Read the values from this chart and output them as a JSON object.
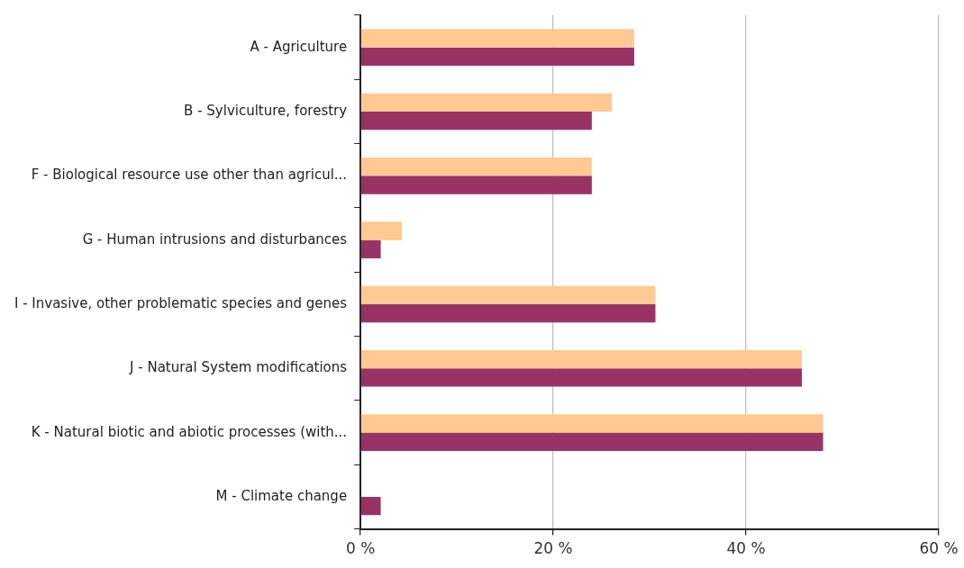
{
  "chart_data": {
    "type": "bar",
    "orientation": "horizontal",
    "categories": [
      "A - Agriculture",
      "B - Sylviculture, forestry",
      "F - Biological resource use other than agricul...",
      "G - Human intrusions and disturbances",
      "I - Invasive, other problematic species and genes",
      "J - Natural System modifications",
      "K - Natural biotic and abiotic processes (with...",
      "M - Climate change"
    ],
    "series": [
      {
        "color": "#ffc993",
        "values": [
          28.4,
          26.1,
          24.0,
          4.3,
          30.6,
          45.8,
          48.0,
          null
        ]
      },
      {
        "color": "#993366",
        "values": [
          28.4,
          24.0,
          24.0,
          2.1,
          30.6,
          45.8,
          48.0,
          2.1
        ]
      }
    ],
    "xlim": [
      0,
      60
    ],
    "xticks": [
      {
        "value": 0,
        "label": "0 %"
      },
      {
        "value": 20,
        "label": "20 %"
      },
      {
        "value": 40,
        "label": "40 %"
      },
      {
        "value": 60,
        "label": "60 %"
      }
    ],
    "grid": "x",
    "legend": false
  }
}
